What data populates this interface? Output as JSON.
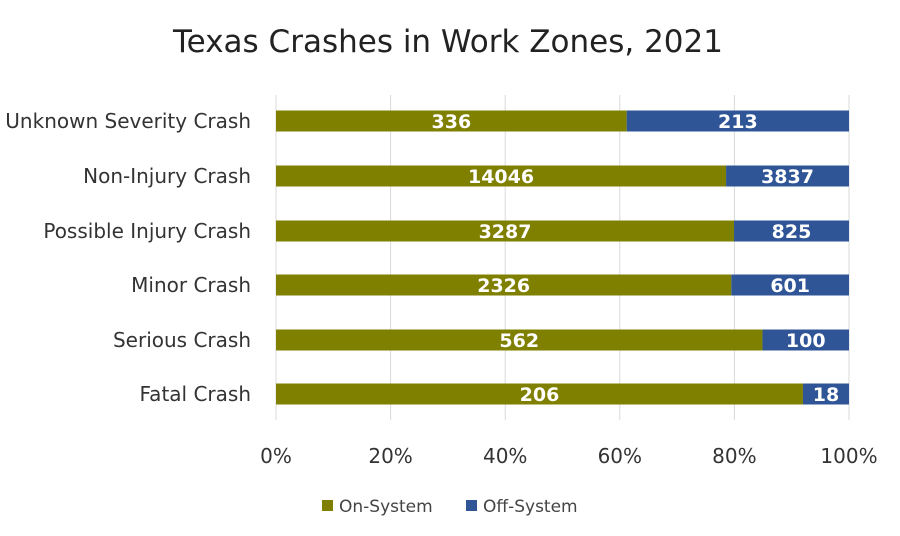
{
  "chart_data": {
    "type": "bar",
    "orientation": "horizontal",
    "stacking": "percent",
    "title": "Texas Crashes in Work Zones, 2021",
    "categories": [
      "Unknown Severity Crash",
      "Non-Injury Crash",
      "Possible Injury Crash",
      "Minor Crash",
      "Serious Crash",
      "Fatal Crash"
    ],
    "series": [
      {
        "name": "On-System",
        "color": "#7f7f00",
        "values": [
          336,
          14046,
          3287,
          2326,
          562,
          206
        ]
      },
      {
        "name": "Off-System",
        "color": "#2f5597",
        "values": [
          213,
          3837,
          825,
          601,
          100,
          18
        ]
      }
    ],
    "x_ticks": [
      "0%",
      "20%",
      "40%",
      "60%",
      "80%",
      "100%"
    ],
    "xlim": [
      0,
      100
    ],
    "grid": true,
    "legend": "bottom"
  }
}
